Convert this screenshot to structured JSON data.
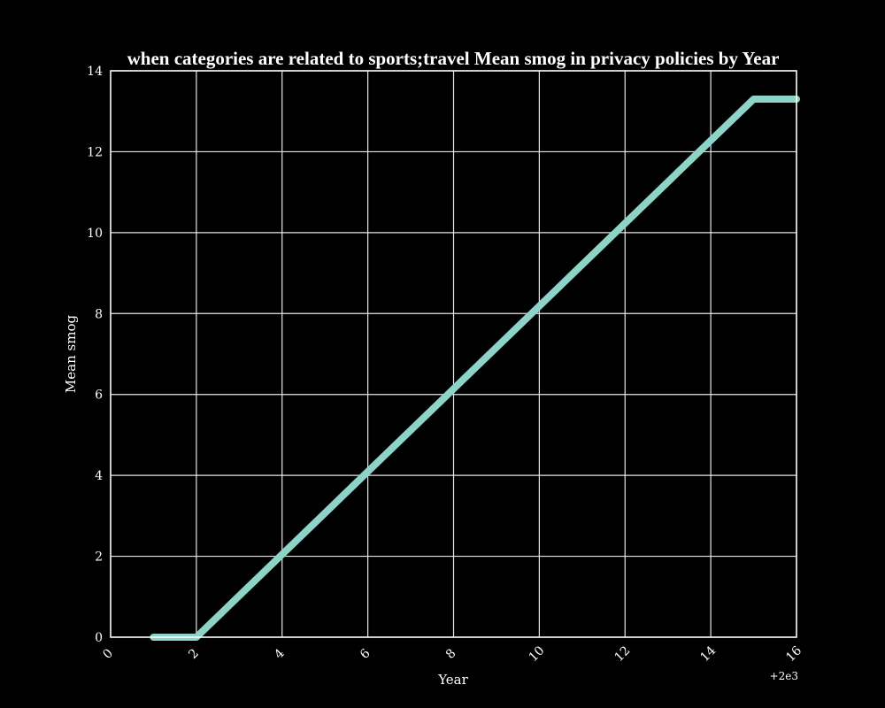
{
  "chart_data": {
    "type": "line",
    "title": "when categories are related to sports;travel Mean smog in privacy policies by Year",
    "xlabel": "Year",
    "ylabel": "Mean smog",
    "x_offset_label": "+2e3",
    "x": [
      2001,
      2002,
      2015,
      2016
    ],
    "series": [
      {
        "values": [
          0.0,
          0.0,
          13.3,
          13.3
        ],
        "color": "#8dd3c7"
      }
    ],
    "xlim": [
      2000,
      2016
    ],
    "ylim": [
      0,
      14
    ],
    "x_ticks": [
      2000,
      2002,
      2004,
      2006,
      2008,
      2010,
      2012,
      2014,
      2016
    ],
    "x_tick_labels": [
      "0",
      "2",
      "4",
      "6",
      "8",
      "10",
      "12",
      "14",
      "16"
    ],
    "y_ticks": [
      0,
      2,
      4,
      6,
      8,
      10,
      12,
      14
    ],
    "y_tick_labels": [
      "0",
      "2",
      "4",
      "6",
      "8",
      "10",
      "12",
      "14"
    ],
    "grid": true,
    "background": "#000000",
    "foreground": "#ffffff"
  }
}
